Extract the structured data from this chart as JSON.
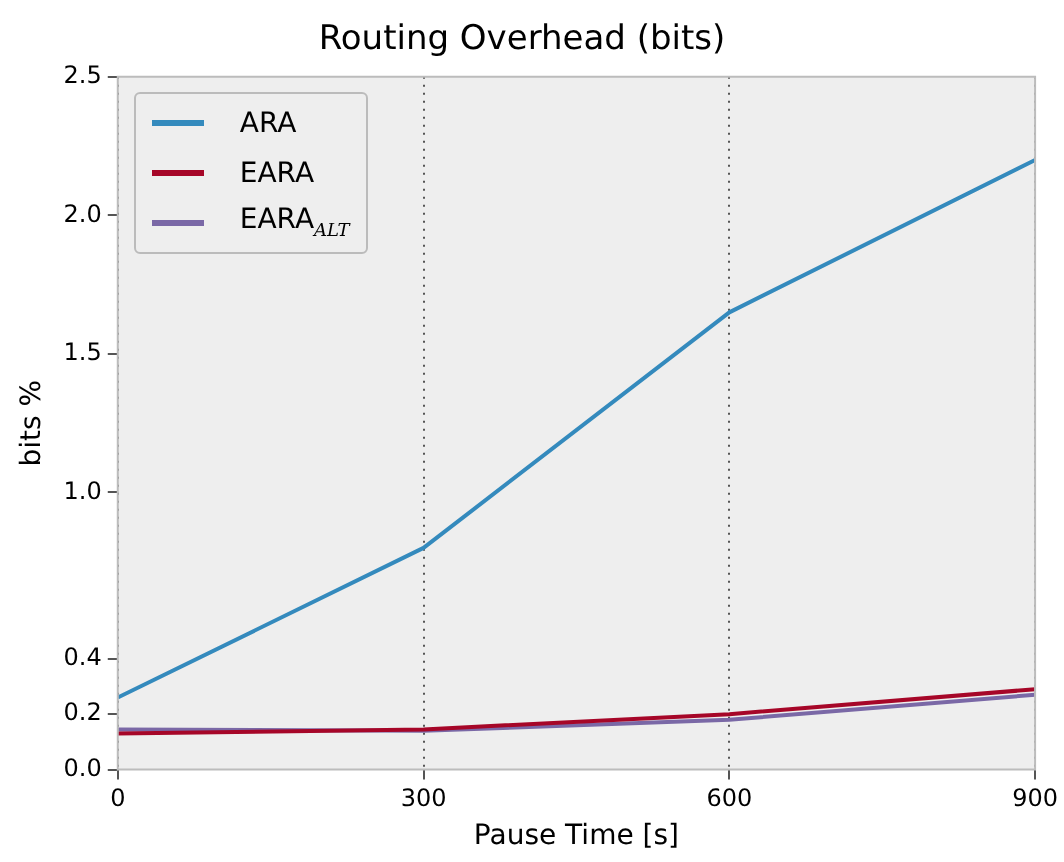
{
  "chart_data": {
    "type": "line",
    "title": "Routing Overhead (bits)",
    "xlabel": "Pause Time [s]",
    "ylabel": "bits %",
    "x": [
      0,
      300,
      600,
      900
    ],
    "series": [
      {
        "name": "ARA",
        "color": "#348abd",
        "values": [
          0.26,
          0.8,
          1.65,
          2.2
        ]
      },
      {
        "name": "EARA",
        "color": "#a60628",
        "values": [
          0.13,
          0.145,
          0.2,
          0.29
        ]
      },
      {
        "name": "EARA$_{ALT}$",
        "color": "#7a68a6",
        "values": [
          0.145,
          0.14,
          0.18,
          0.27
        ]
      }
    ],
    "xlim": [
      0,
      900
    ],
    "xticks": [
      0,
      300,
      600,
      900
    ],
    "ylim": [
      0,
      2.5
    ],
    "yticks": [
      {
        "value": 0,
        "label": "0.0"
      },
      {
        "value": 0.2,
        "label": "0.2"
      },
      {
        "value": 0.4,
        "label": "0.4"
      },
      {
        "value": 1,
        "label": "1.0"
      },
      {
        "value": 1.5,
        "label": "1.5"
      },
      {
        "value": 2,
        "label": "2.0"
      },
      {
        "value": 2.5,
        "label": "2.5"
      }
    ],
    "grid": "x",
    "legend": "top left",
    "marker": "none",
    "line_style": "solid"
  }
}
